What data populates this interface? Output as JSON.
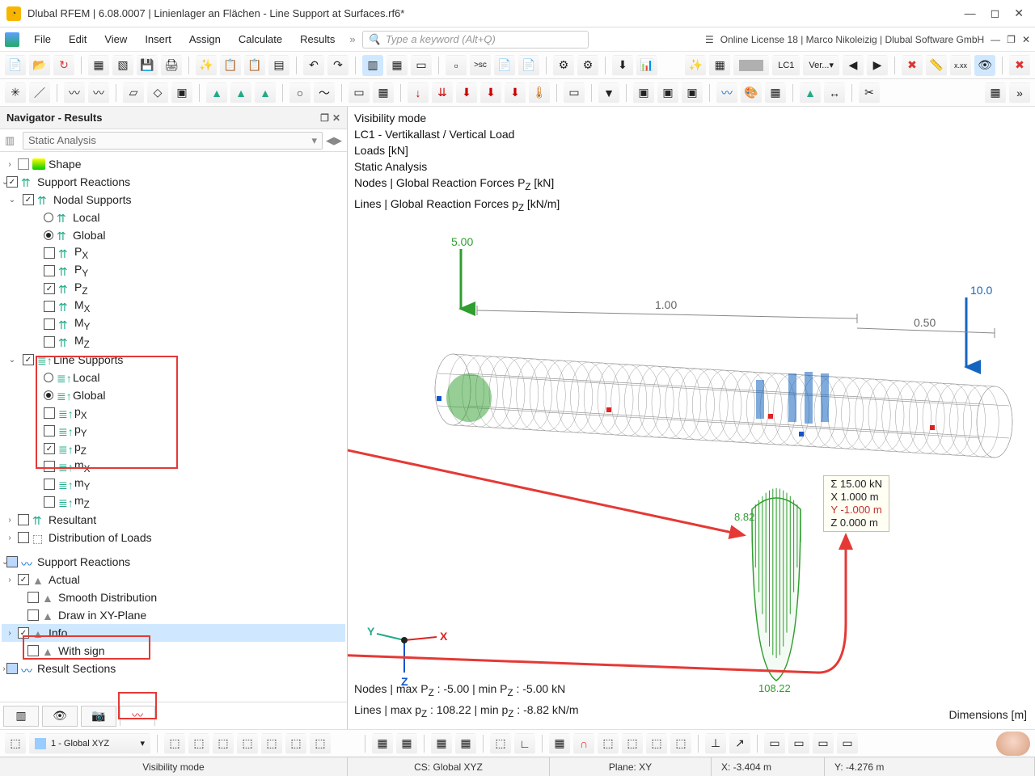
{
  "window": {
    "title": "Dlubal RFEM | 6.08.0007 | Linienlager an Flächen - Line Support at Surfaces.rf6*",
    "license": "Online License 18 | Marco Nikoleizig | Dlubal Software GmbH"
  },
  "menu": [
    "File",
    "Edit",
    "View",
    "Insert",
    "Assign",
    "Calculate",
    "Results"
  ],
  "search_placeholder": "Type a keyword (Alt+Q)",
  "loadcase_combo": "LC1",
  "loadcase_label": "Ver...",
  "navigator": {
    "title": "Navigator - Results",
    "analysis": "Static Analysis",
    "tree": {
      "shape": "Shape",
      "support_reactions": "Support Reactions",
      "nodal_supports": "Nodal Supports",
      "local": "Local",
      "global": "Global",
      "px": "Pₓ",
      "py": "Pᵧ",
      "pz": "P_Z",
      "mx": "Mₓ",
      "my": "Mᵧ",
      "mz": "M_Z",
      "line_supports": "Line Supports",
      "lpx": "pₓ",
      "lpy": "pᵧ",
      "lpz": "p_Z",
      "lmx": "mₓ",
      "lmy": "mᵧ",
      "lmz": "m_Z",
      "resultant": "Resultant",
      "dist_loads": "Distribution of Loads",
      "support_reactions2": "Support Reactions",
      "actual": "Actual",
      "smooth": "Smooth Distribution",
      "draw_xy": "Draw in XY-Plane",
      "info": "Info",
      "with_sign": "With sign",
      "result_sections": "Result Sections"
    }
  },
  "viewport": {
    "lines": [
      "Visibility mode",
      "LC1 - Vertikallast / Vertical Load",
      "Loads [kN]",
      "Static Analysis",
      "Nodes | Global Reaction Forces P_Z [kN]",
      "Lines | Global Reaction Forces p_Z [kN/m]"
    ],
    "load_top": "5.00",
    "load_right": "10.0",
    "dim1": "1.00",
    "dim2": "0.50",
    "result_left": "8.82",
    "result_bottom": "108.22",
    "info_sigma": "Σ   15.00   kN",
    "info_x": "X    1.000   m",
    "info_y": "Y   -1.000   m",
    "info_z": "Z    0.000   m",
    "nodes_summary": "Nodes | max P_Z : -5.00 | min P_Z : -5.00 kN",
    "lines_summary": "Lines | max p_Z : 108.22 | min p_Z : -8.82 kN/m",
    "dimensions_label": "Dimensions [m]"
  },
  "bottom_combo": "1 - Global XYZ",
  "status": {
    "mode": "Visibility mode",
    "cs": "CS: Global XYZ",
    "plane": "Plane: XY",
    "x": "X: -3.404 m",
    "y": "Y: -4.276 m"
  },
  "colors": {
    "accent_green": "#2e9e2e",
    "accent_blue": "#1565c0",
    "accent_red": "#e53935",
    "mesh_gray": "#888888",
    "info_y_red": "#c03030"
  }
}
